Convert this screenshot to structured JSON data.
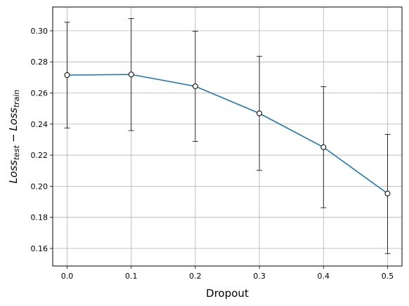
{
  "chart_data": {
    "type": "line",
    "xlabel": "Dropout",
    "ylabel": {
      "base1": "Loss",
      "sub1": "test",
      "minus": "−",
      "base2": "Loss",
      "sub2": "train"
    },
    "x": [
      0.0,
      0.1,
      0.2,
      0.3,
      0.4,
      0.5
    ],
    "series": [
      {
        "values": [
          0.2715,
          0.2719,
          0.2643,
          0.2469,
          0.2251,
          0.1953
        ],
        "err_low": [
          0.2375,
          0.2358,
          0.2289,
          0.2102,
          0.1862,
          0.1567
        ],
        "err_high": [
          0.3055,
          0.3078,
          0.2997,
          0.2836,
          0.264,
          0.2334
        ]
      }
    ],
    "xticks": [
      "0.0",
      "0.1",
      "0.2",
      "0.3",
      "0.4",
      "0.5"
    ],
    "yticks": [
      "0.16",
      "0.18",
      "0.20",
      "0.22",
      "0.24",
      "0.26",
      "0.28",
      "0.30"
    ],
    "xlim": [
      -0.0225,
      0.5225
    ],
    "ylim": [
      0.1487,
      0.3153
    ],
    "grid": true,
    "colors": {
      "line": "#1f77b4",
      "marker_face": "#ffffff",
      "marker_edge": "#000000",
      "error_bar": "#000000",
      "grid": "#b0b0b0"
    }
  }
}
